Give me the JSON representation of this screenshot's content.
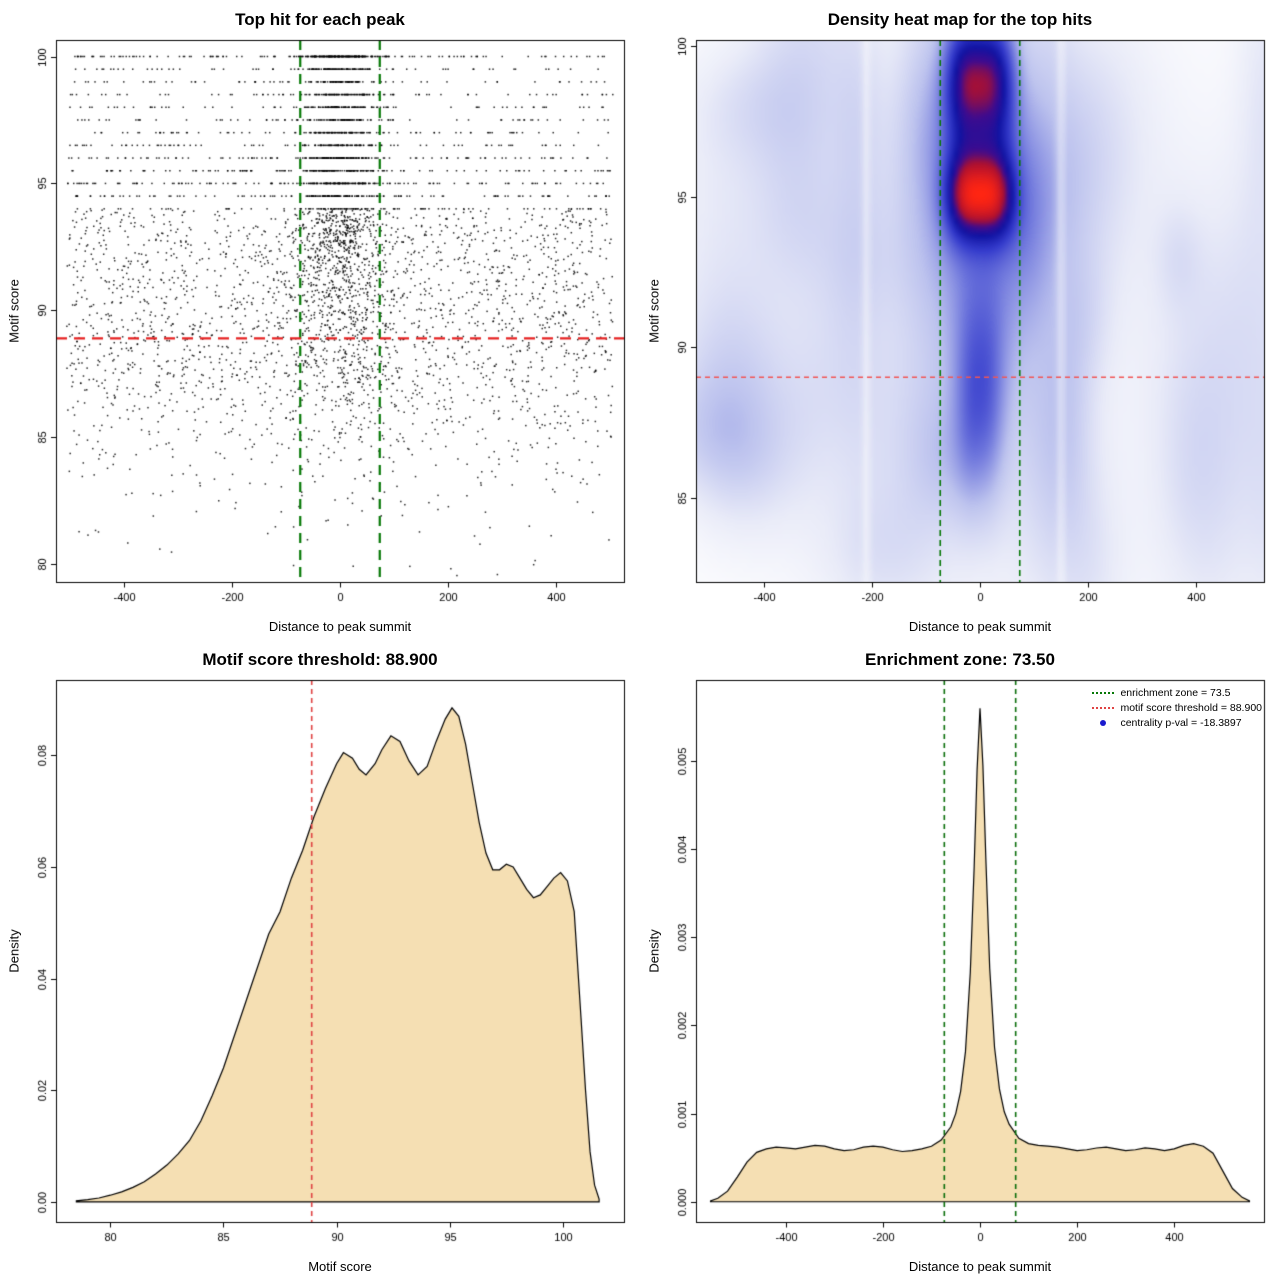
{
  "chart_data": [
    {
      "id": "top-hit-scatter",
      "type": "scatter",
      "title": "Top hit for each peak",
      "xlabel": "Distance to peak summit",
      "ylabel": "Motif score",
      "xlim": [
        -525,
        525
      ],
      "ylim": [
        79.3,
        100.65
      ],
      "xticks": [
        -400,
        -200,
        0,
        200,
        400
      ],
      "xtick_labels": [
        "-400",
        "-200",
        "0",
        "200",
        "400"
      ],
      "yticks": [
        80,
        85,
        90,
        95,
        100
      ],
      "ytick_labels": [
        "80",
        "85",
        "90",
        "95",
        "100"
      ],
      "threshold_line": {
        "y": 88.9,
        "color": "#e62222",
        "dash": [
          11,
          7
        ],
        "width": 2.2
      },
      "zone_lines": {
        "x": [
          -73.5,
          73.5
        ],
        "color": "#067806",
        "dash": [
          10,
          7
        ],
        "width": 2.2
      },
      "points": {
        "n": 5200,
        "seed": 20240613,
        "color": "#000000",
        "size": 1.5,
        "center_sigma_top": 38,
        "center_sigma_slope": 2.0,
        "uniform_range": [
          -505,
          505
        ],
        "score_quantum": 0.5,
        "score_quantize_above": 94,
        "score_max": 100.0
      }
    },
    {
      "id": "density-heatmap",
      "type": "heatmap",
      "title": "Density heat map for the top hits",
      "xlabel": "Distance to peak summit",
      "ylabel": "Motif score",
      "xlim": [
        -525,
        525
      ],
      "ylim": [
        82.2,
        100.2
      ],
      "xticks": [
        -400,
        -200,
        0,
        200,
        400
      ],
      "xtick_labels": [
        "-400",
        "-200",
        "0",
        "200",
        "400"
      ],
      "yticks": [
        85,
        90,
        95,
        100
      ],
      "ytick_labels": [
        "85",
        "90",
        "95",
        "100"
      ],
      "threshold_line": {
        "y": 89,
        "color": "#f25555",
        "dash": [
          5,
          4
        ],
        "width": 1.3
      },
      "zone_lines": {
        "x": [
          -73.5,
          73.5
        ],
        "color": "#067806",
        "dash": [
          6,
          4
        ],
        "width": 1.6
      },
      "density_model": {
        "grid": [
          132,
          112
        ],
        "seed": 777,
        "column_terms": [
          {
            "amp": 0.45,
            "cy": 88.2,
            "sy": 2.4,
            "sx": 34,
            "p": 2.4
          },
          {
            "amp": 0.35,
            "cy": 92.7,
            "sy": 4.8,
            "sx": 85,
            "p": 2.0
          },
          {
            "amp": 0.97,
            "cy": 95.0,
            "sy": 1.1,
            "sx": 52,
            "p": 3.2
          },
          {
            "amp": 1.0,
            "cy": 99.0,
            "sy": 1.7,
            "sx": 52,
            "p": 3.2
          },
          {
            "amp": 0.1,
            "cy": 92.0,
            "sy": 7.5,
            "sx": 420,
            "p": 2.0
          }
        ],
        "noise_blobs": 42,
        "noise_amp": [
          0.05,
          0.16
        ],
        "noise_sx": [
          30,
          100
        ],
        "noise_sy": [
          1.2,
          3.8
        ],
        "white_streaks": [
          -210,
          150
        ],
        "gamma": 0.9,
        "colormap": [
          [
            0.0,
            "#ffffff"
          ],
          [
            0.12,
            "#e9ebf8"
          ],
          [
            0.28,
            "#bdc3ee"
          ],
          [
            0.45,
            "#7179dd"
          ],
          [
            0.6,
            "#343bcc"
          ],
          [
            0.72,
            "#1113a2"
          ],
          [
            0.8,
            "#3f0b8e"
          ],
          [
            0.87,
            "#ad1030"
          ],
          [
            1.0,
            "#ff2512"
          ]
        ]
      }
    },
    {
      "id": "motif-score-density",
      "type": "area",
      "title": "Motif score threshold: 88.900",
      "xlabel": "Motif score",
      "ylabel": "Density",
      "xlim": [
        77.6,
        102.7
      ],
      "ylim": [
        -0.0036,
        0.0935
      ],
      "xticks": [
        80,
        85,
        90,
        95,
        100
      ],
      "xtick_labels": [
        "80",
        "85",
        "90",
        "95",
        "100"
      ],
      "yticks": [
        0,
        0.02,
        0.04,
        0.06,
        0.08
      ],
      "ytick_labels": [
        "0.00",
        "0.02",
        "0.04",
        "0.06",
        "0.08"
      ],
      "fill": "#f5dfb3",
      "stroke": "#000000",
      "vlines": [
        {
          "x": 88.9,
          "color": "#e04343",
          "dash": [
            5,
            4
          ],
          "width": 1.6
        }
      ],
      "x": [
        78.5,
        79,
        79.5,
        80,
        80.5,
        81,
        81.5,
        82,
        82.5,
        83,
        83.5,
        84,
        84.5,
        85,
        85.5,
        86,
        86.5,
        87,
        87.5,
        88,
        88.5,
        89,
        89.5,
        90,
        90.3,
        90.7,
        91,
        91.3,
        91.7,
        92,
        92.4,
        92.8,
        93.2,
        93.6,
        94,
        94.4,
        94.8,
        95.1,
        95.4,
        95.7,
        96,
        96.3,
        96.6,
        96.9,
        97.2,
        97.5,
        97.8,
        98.1,
        98.4,
        98.7,
        99,
        99.3,
        99.6,
        99.9,
        100.2,
        100.5,
        100.8,
        101,
        101.2,
        101.4,
        101.6
      ],
      "y": [
        0.0002,
        0.0004,
        0.0007,
        0.0012,
        0.0018,
        0.0026,
        0.0036,
        0.005,
        0.0066,
        0.0086,
        0.011,
        0.0145,
        0.019,
        0.024,
        0.03,
        0.036,
        0.042,
        0.048,
        0.052,
        0.058,
        0.063,
        0.069,
        0.074,
        0.0785,
        0.0805,
        0.0795,
        0.0775,
        0.0765,
        0.0785,
        0.081,
        0.0835,
        0.0825,
        0.079,
        0.0765,
        0.078,
        0.0825,
        0.0865,
        0.0885,
        0.087,
        0.082,
        0.075,
        0.068,
        0.0625,
        0.0595,
        0.0595,
        0.0605,
        0.06,
        0.058,
        0.056,
        0.0545,
        0.055,
        0.0565,
        0.058,
        0.059,
        0.0575,
        0.052,
        0.033,
        0.02,
        0.009,
        0.003,
        0.0005
      ]
    },
    {
      "id": "summit-distance-density",
      "type": "area",
      "title": "Enrichment zone: 73.50",
      "xlabel": "Distance to peak summit",
      "ylabel": "Density",
      "xlim": [
        -585,
        585
      ],
      "ylim": [
        -0.00023,
        0.00592
      ],
      "xticks": [
        -400,
        -200,
        0,
        200,
        400
      ],
      "xtick_labels": [
        "-400",
        "-200",
        "0",
        "200",
        "400"
      ],
      "yticks": [
        0,
        0.001,
        0.002,
        0.003,
        0.004,
        0.005
      ],
      "ytick_labels": [
        "0.000",
        "0.001",
        "0.002",
        "0.003",
        "0.004",
        "0.005"
      ],
      "fill": "#f5dfb3",
      "stroke": "#000000",
      "vlines": [
        {
          "x": -73.5,
          "color": "#0a6e0a",
          "dash": [
            5,
            4
          ],
          "width": 1.6
        },
        {
          "x": 73.5,
          "color": "#0a6e0a",
          "dash": [
            5,
            4
          ],
          "width": 1.6
        }
      ],
      "x": [
        -555,
        -540,
        -520,
        -500,
        -480,
        -460,
        -440,
        -420,
        -400,
        -380,
        -360,
        -340,
        -320,
        -300,
        -280,
        -260,
        -240,
        -220,
        -200,
        -180,
        -160,
        -140,
        -120,
        -100,
        -80,
        -60,
        -50,
        -40,
        -30,
        -20,
        -12,
        -6,
        0,
        6,
        12,
        20,
        30,
        40,
        50,
        60,
        80,
        100,
        120,
        140,
        160,
        180,
        200,
        220,
        240,
        260,
        280,
        300,
        320,
        340,
        360,
        380,
        400,
        420,
        440,
        460,
        480,
        500,
        520,
        540,
        555
      ],
      "y": [
        1e-05,
        4e-05,
        0.00012,
        0.00028,
        0.00045,
        0.00056,
        0.0006,
        0.00062,
        0.00061,
        0.0006,
        0.00062,
        0.00064,
        0.00063,
        0.0006,
        0.00058,
        0.00059,
        0.00062,
        0.00063,
        0.00062,
        0.00059,
        0.00057,
        0.00058,
        0.0006,
        0.00063,
        0.0007,
        0.00085,
        0.001,
        0.00125,
        0.0017,
        0.0026,
        0.0038,
        0.0049,
        0.0056,
        0.00495,
        0.0039,
        0.00265,
        0.00175,
        0.00128,
        0.00102,
        0.00088,
        0.00072,
        0.00066,
        0.00064,
        0.00063,
        0.00062,
        0.0006,
        0.00058,
        0.00059,
        0.00061,
        0.00062,
        0.0006,
        0.00058,
        0.00059,
        0.00061,
        0.0006,
        0.00058,
        0.0006,
        0.00064,
        0.00066,
        0.00063,
        0.00055,
        0.00035,
        0.00015,
        5e-05,
        1e-05
      ],
      "legend": {
        "items": [
          {
            "label": "enrichment zone = 73.5",
            "swatch": "dotted-line",
            "color": "#067806"
          },
          {
            "label": "motif score threshold = 88.900",
            "swatch": "dotted-line",
            "color": "#e04343"
          },
          {
            "label": "centrality p-val = -18.3897",
            "swatch": "point",
            "color": "#1a1ace"
          }
        ]
      }
    }
  ]
}
